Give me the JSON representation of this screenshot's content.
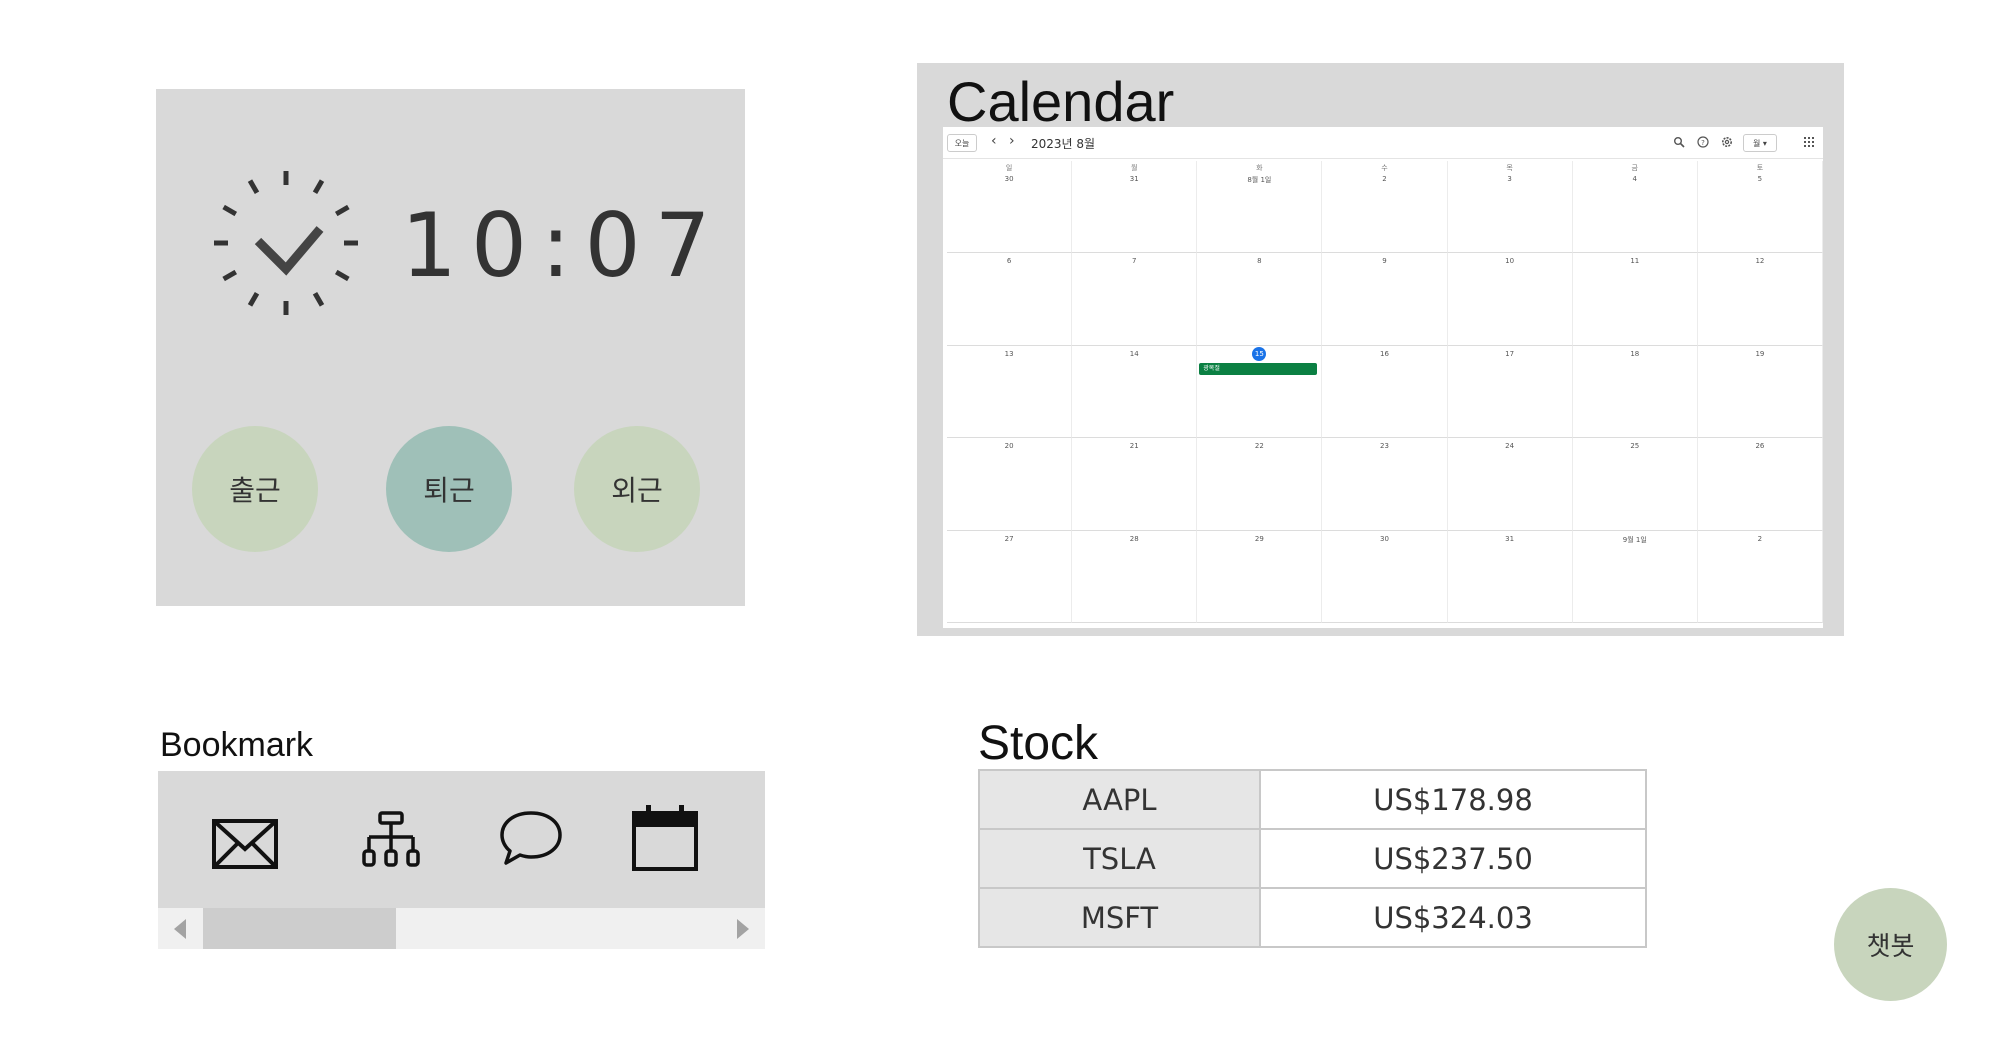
{
  "clock": {
    "time": "10:07",
    "buttons": [
      {
        "label": "출근",
        "color": "#c8d5bd"
      },
      {
        "label": "퇴근",
        "color": "#9fc0b8"
      },
      {
        "label": "외근",
        "color": "#c8d5bd"
      }
    ]
  },
  "calendar": {
    "title": "Calendar",
    "toolbar": {
      "today_label": "오늘",
      "prev_label": "‹",
      "next_label": "›",
      "month_label": "2023년 8월",
      "view_label": "월 ▾"
    },
    "weekdays": [
      "일",
      "월",
      "화",
      "수",
      "목",
      "금",
      "토"
    ],
    "weeks": [
      [
        "30",
        "31",
        "8월 1일",
        "2",
        "3",
        "4",
        "5"
      ],
      [
        "6",
        "7",
        "8",
        "9",
        "10",
        "11",
        "12"
      ],
      [
        "13",
        "14",
        "15",
        "16",
        "17",
        "18",
        "19"
      ],
      [
        "20",
        "21",
        "22",
        "23",
        "24",
        "25",
        "26"
      ],
      [
        "27",
        "28",
        "29",
        "30",
        "31",
        "9월 1일",
        "2"
      ]
    ],
    "today": "15",
    "event": {
      "label": "광복절",
      "color": "#0b8043"
    }
  },
  "bookmark": {
    "title": "Bookmark",
    "items": [
      "mail-icon",
      "sitemap-icon",
      "chat-icon",
      "calendar-icon"
    ]
  },
  "stock": {
    "title": "Stock",
    "rows": [
      {
        "symbol": "AAPL",
        "price": "US$178.98"
      },
      {
        "symbol": "TSLA",
        "price": "US$237.50"
      },
      {
        "symbol": "MSFT",
        "price": "US$324.03"
      }
    ]
  },
  "chatbot": {
    "label": "챗봇"
  }
}
